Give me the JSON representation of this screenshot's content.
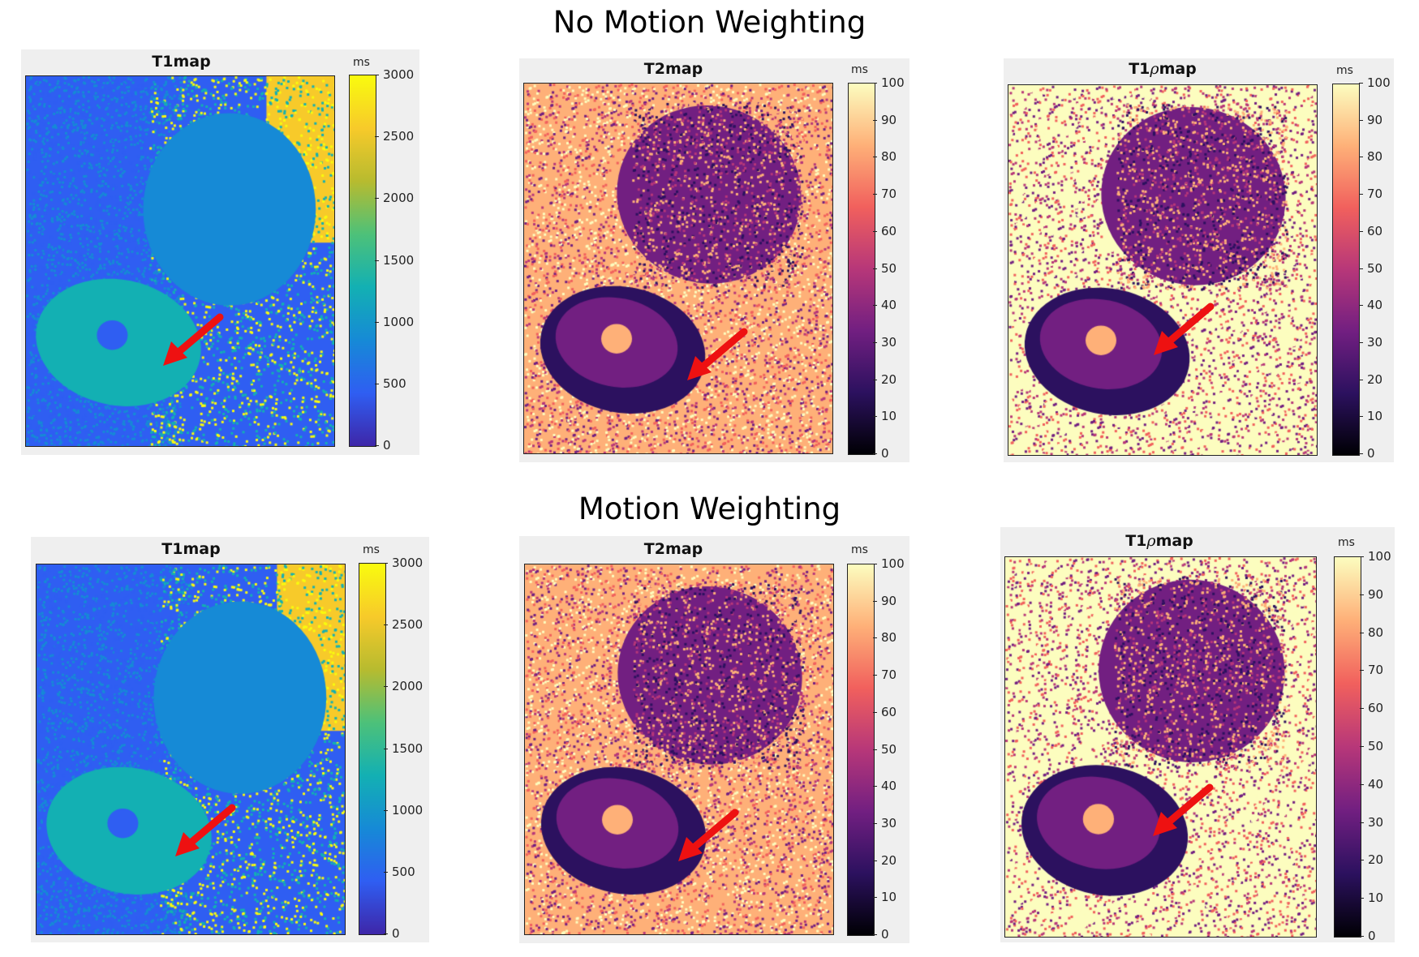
{
  "sections": {
    "top_title": "No Motion Weighting",
    "bottom_title": "Motion Weighting"
  },
  "panels": [
    {
      "title": "T1map",
      "unit": "ms",
      "ticks": [
        "3000",
        "2500",
        "2000",
        "1500",
        "1000",
        "500",
        "0"
      ],
      "colormap": "parula",
      "rho": false
    },
    {
      "title": "T2map",
      "unit": "ms",
      "ticks": [
        "100",
        "90",
        "80",
        "70",
        "60",
        "50",
        "40",
        "30",
        "20",
        "10",
        "0"
      ],
      "colormap": "magma",
      "rho": false
    },
    {
      "title_prefix": "T1",
      "title_rho": "ρ",
      "title_suffix": "map",
      "unit": "ms",
      "ticks": [
        "100",
        "90",
        "80",
        "70",
        "60",
        "50",
        "40",
        "30",
        "20",
        "10",
        "0"
      ],
      "colormap": "magma",
      "rho": true
    },
    {
      "title": "T1map",
      "unit": "ms",
      "ticks": [
        "3000",
        "2500",
        "2000",
        "1500",
        "1000",
        "500",
        "0"
      ],
      "colormap": "parula",
      "rho": false
    },
    {
      "title": "T2map",
      "unit": "ms",
      "ticks": [
        "100",
        "90",
        "80",
        "70",
        "60",
        "50",
        "40",
        "30",
        "20",
        "10",
        "0"
      ],
      "colormap": "magma",
      "rho": false
    },
    {
      "title_prefix": "T1",
      "title_rho": "ρ",
      "title_suffix": "map",
      "unit": "ms",
      "ticks": [
        "100",
        "90",
        "80",
        "70",
        "60",
        "50",
        "40",
        "30",
        "20",
        "10",
        "0"
      ],
      "colormap": "magma",
      "rho": true
    }
  ],
  "colors": {
    "arrow": "#ee1111",
    "parula": [
      "#3e26a8",
      "#2f5ef2",
      "#168ad6",
      "#13b0b3",
      "#4dc179",
      "#b7bb2f",
      "#f7ca2a",
      "#f9fb0e"
    ],
    "magma": [
      "#000004",
      "#2c115f",
      "#721f81",
      "#b73779",
      "#f1605d",
      "#feb078",
      "#fcfdbf"
    ]
  }
}
